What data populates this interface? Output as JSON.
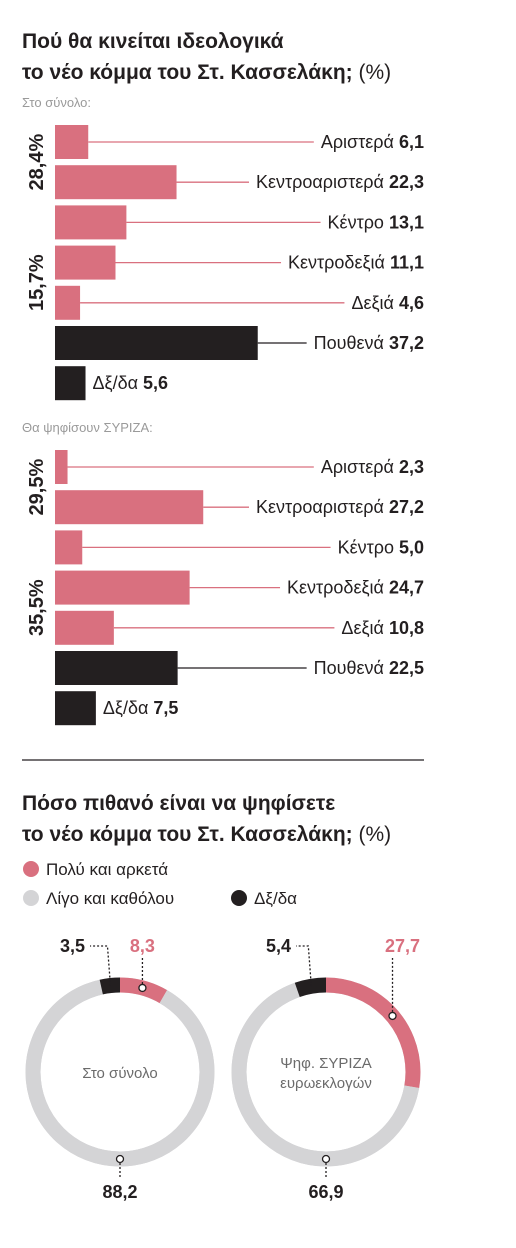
{
  "colors": {
    "pink": "#d9707f",
    "black": "#231f20",
    "grey": "#d4d4d6",
    "sep": "#231f20"
  },
  "chart_data": [
    {
      "type": "bar",
      "title_line1": "Πού θα κινείται ιδεολογικά",
      "title_line2": "το νέο κόμμα του Στ. Κασσελάκη;",
      "title_unit": "(%)",
      "panels": [
        {
          "subtitle": "Στο σύνολο:",
          "categories": [
            "Αριστερά",
            "Κεντροαριστερά",
            "Κέντρο",
            "Κεντροδεξιά",
            "Δεξιά",
            "Πουθενά",
            "Δξ/δα"
          ],
          "values": [
            6.1,
            22.3,
            13.1,
            11.1,
            4.6,
            37.2,
            5.6
          ],
          "value_labels": [
            "6,1",
            "22,3",
            "13,1",
            "11,1",
            "4,6",
            "37,2",
            "5,6"
          ],
          "groups": [
            {
              "label": "28,4%",
              "from": 0,
              "to": 1
            },
            {
              "label": "15,7%",
              "from": 3,
              "to": 4
            }
          ]
        },
        {
          "subtitle": "Θα ψηφίσουν ΣΥΡΙΖΑ:",
          "categories": [
            "Αριστερά",
            "Κεντροαριστερά",
            "Κέντρο",
            "Κεντροδεξιά",
            "Δεξιά",
            "Πουθενά",
            "Δξ/δα"
          ],
          "values": [
            2.3,
            27.2,
            5.0,
            24.7,
            10.8,
            22.5,
            7.5
          ],
          "value_labels": [
            "2,3",
            "27,2",
            "5,0",
            "24,7",
            "10,8",
            "22,5",
            "7,5"
          ],
          "groups": [
            {
              "label": "29,5%",
              "from": 0,
              "to": 1
            },
            {
              "label": "35,5%",
              "from": 3,
              "to": 4
            }
          ]
        }
      ]
    },
    {
      "type": "pie",
      "title_line1": "Πόσο πιθανό είναι να ψηφίσετε",
      "title_line2": "το νέο κόμμα του Στ. Κασσελάκη;",
      "title_unit": "(%)",
      "legend": [
        "Πολύ και αρκετά",
        "Λίγο και καθόλου",
        "Δξ/δα"
      ],
      "donuts": [
        {
          "center_label": [
            "Στο σύνολο"
          ],
          "values": [
            8.3,
            88.2,
            3.5
          ],
          "value_labels": [
            "8,3",
            "88,2",
            "3,5"
          ]
        },
        {
          "center_label": [
            "Ψηφ. ΣΥΡΙΖΑ",
            "ευρωεκλογών"
          ],
          "values": [
            27.7,
            66.9,
            5.4
          ],
          "value_labels": [
            "27,7",
            "66,9",
            "5,4"
          ]
        }
      ]
    }
  ]
}
